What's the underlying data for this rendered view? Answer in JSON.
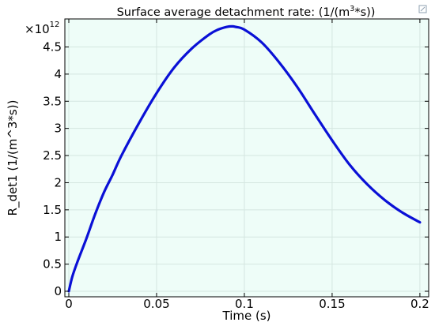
{
  "chart_data": {
    "type": "line",
    "title": {
      "prefix": "Surface average detachment rate:  (1/(m",
      "sup": "3",
      "suffix": "*s))"
    },
    "xlabel": "Time (s)",
    "ylabel": "R_det1 (1/(m^3*s))",
    "y_multiplier": {
      "base": "×10",
      "exponent": "12"
    },
    "xlim": [
      0,
      0.205
    ],
    "ylim": [
      0,
      4.9
    ],
    "x_ticks": [
      0,
      0.05,
      0.1,
      0.15,
      0.2
    ],
    "x_tick_labels": [
      "0",
      "0.05",
      "0.1",
      "0.15",
      "0.2"
    ],
    "y_ticks": [
      0,
      0.5,
      1,
      1.5,
      2,
      2.5,
      3,
      3.5,
      4,
      4.5
    ],
    "y_tick_labels": [
      "0",
      "0.5",
      "1",
      "1.5",
      "2",
      "2.5",
      "3",
      "3.5",
      "4",
      "4.5"
    ],
    "grid": true,
    "colors": {
      "line": "#0a10d6",
      "plot_background": "#eefdf8",
      "grid": "#d4e6e0",
      "axis": "#000000"
    },
    "series": [
      {
        "x": [
          0,
          0.002,
          0.005,
          0.01,
          0.015,
          0.02,
          0.025,
          0.03,
          0.04,
          0.05,
          0.06,
          0.07,
          0.08,
          0.085,
          0.09,
          0.093,
          0.095,
          0.1,
          0.11,
          0.12,
          0.13,
          0.14,
          0.15,
          0.16,
          0.17,
          0.18,
          0.19,
          0.2
        ],
        "y": [
          0,
          0.27,
          0.55,
          0.97,
          1.42,
          1.82,
          2.15,
          2.5,
          3.1,
          3.65,
          4.12,
          4.47,
          4.73,
          4.82,
          4.87,
          4.88,
          4.87,
          4.82,
          4.58,
          4.21,
          3.77,
          3.27,
          2.78,
          2.33,
          1.97,
          1.68,
          1.45,
          1.27
        ]
      }
    ]
  }
}
